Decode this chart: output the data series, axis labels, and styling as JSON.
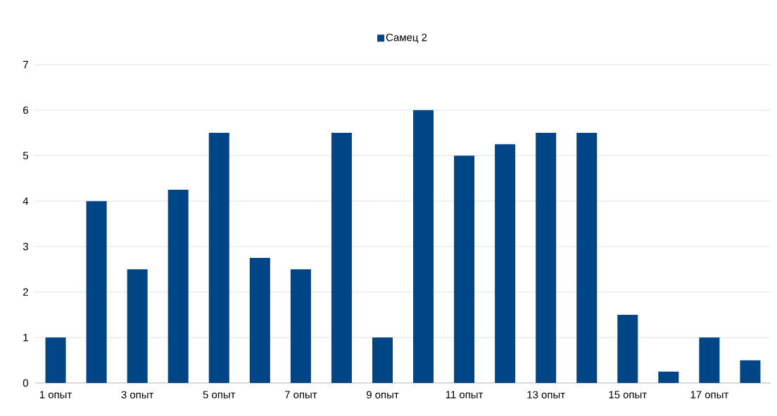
{
  "chart_data": {
    "type": "bar",
    "categories": [
      "1 опыт",
      null,
      "3 опыт",
      null,
      "5 опыт",
      null,
      "7 опыт",
      null,
      "9 опыт",
      null,
      "11 опыт",
      null,
      "13 опыт",
      null,
      "15 опыт",
      null,
      "17 опыт",
      null
    ],
    "series": [
      {
        "name": "Самец 2",
        "color": "#004586",
        "values": [
          1,
          4,
          2.5,
          4.25,
          5.5,
          2.75,
          2.5,
          5.5,
          1,
          6,
          5,
          5.25,
          5.5,
          5.5,
          1.5,
          0.25,
          1,
          0.5
        ]
      }
    ],
    "ylim": [
      0,
      7
    ],
    "yticks": [
      0,
      1,
      2,
      3,
      4,
      5,
      6,
      7
    ],
    "grid": "y",
    "legend": "top"
  }
}
